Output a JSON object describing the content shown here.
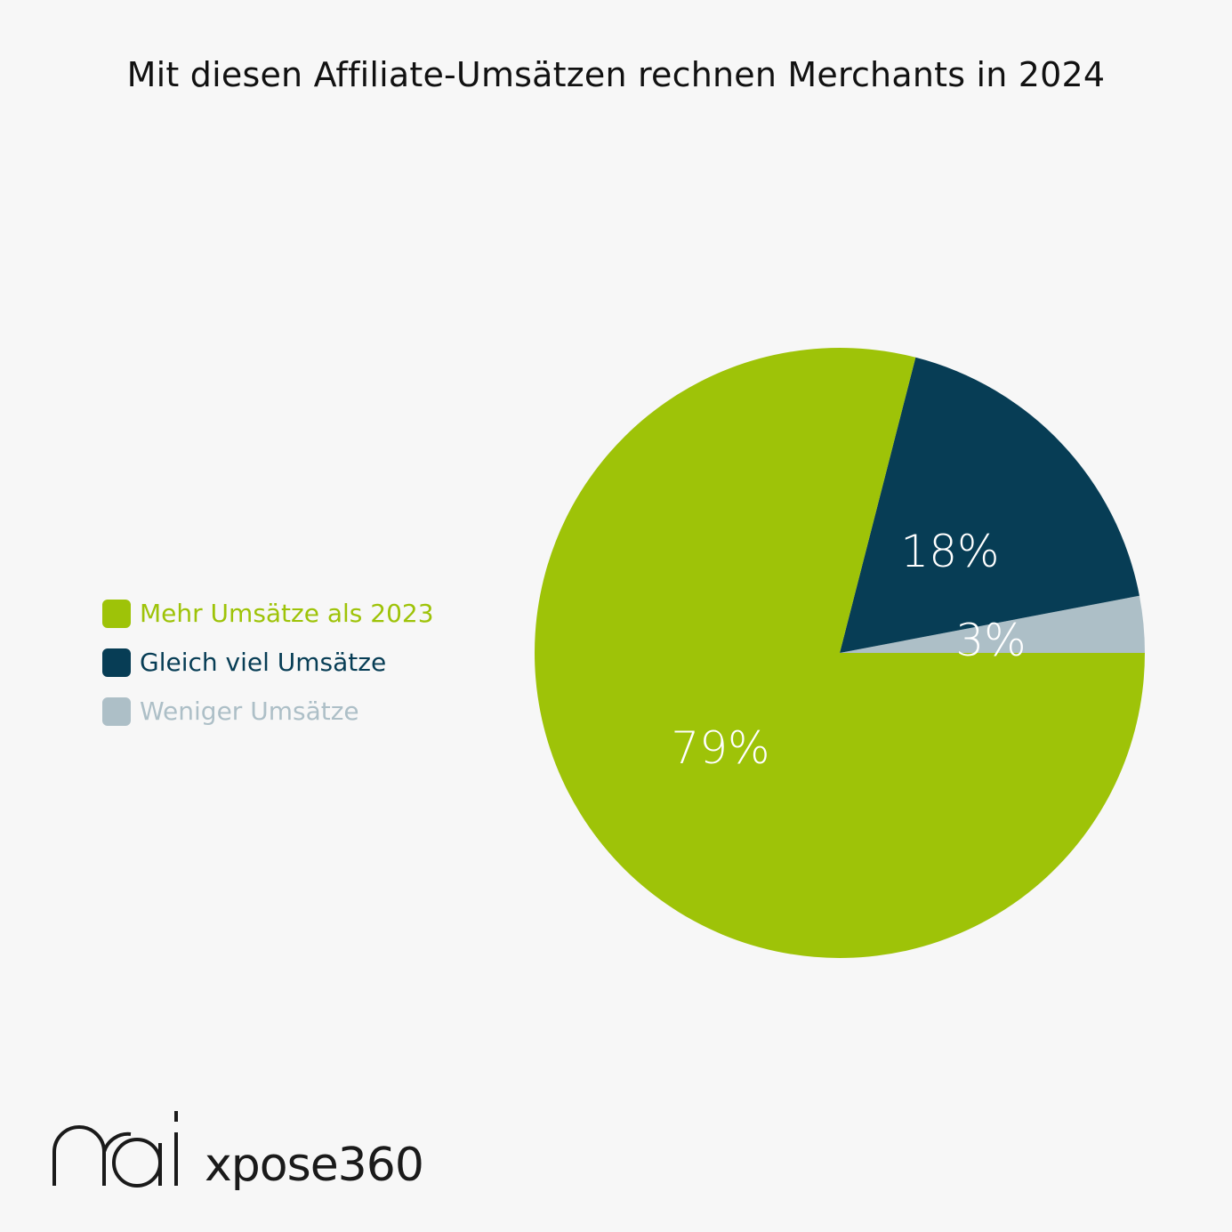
{
  "chart_data": {
    "type": "pie",
    "title": "Mit diesen Affiliate-Umsätzen rechnen Merchants in 2024",
    "slices": [
      {
        "label": "Mehr Umsätze als 2023",
        "value": 79,
        "display": "79%",
        "color": "#9ec308"
      },
      {
        "label": "Gleich viel Umsätze",
        "value": 18,
        "display": "18%",
        "color": "#073d55"
      },
      {
        "label": "Weniger Umsätze",
        "value": 3,
        "display": "3%",
        "color": "#adbfc7"
      }
    ],
    "legend_position": "left",
    "start_angle": "3 o'clock, counter-clockwise order: Weniger, Gleich, Mehr"
  },
  "branding": {
    "logo_mark": "mai",
    "logo_text": "xpose360"
  }
}
